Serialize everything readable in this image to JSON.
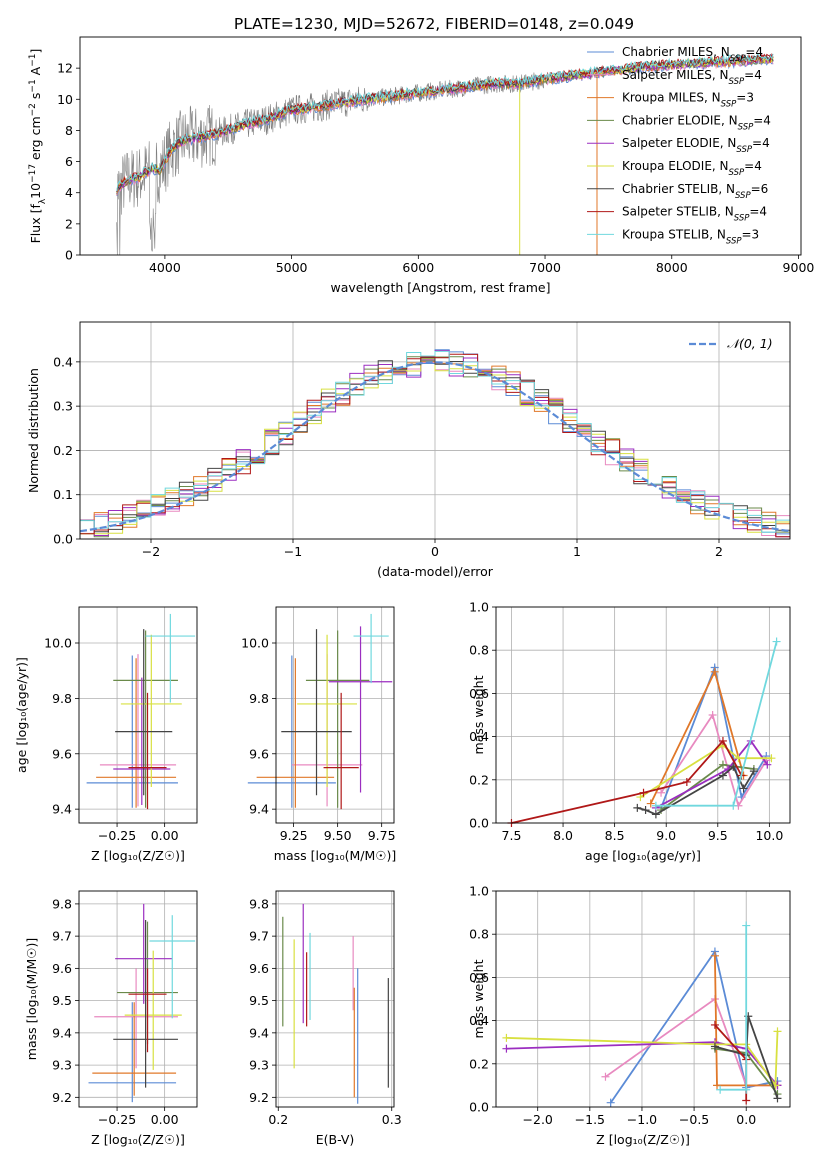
{
  "colors": {
    "Chabrier MILES": "#5b8bd6",
    "Salpeter MILES": "#e88ac0",
    "Kroupa MILES": "#e0782a",
    "Chabrier ELODIE": "#6a8a4a",
    "Salpeter ELODIE": "#9b2ec0",
    "Kroupa ELODIE": "#d8e040",
    "Chabrier STELIB": "#444444",
    "Salpeter STELIB": "#b01818",
    "Kroupa STELIB": "#70d8de"
  },
  "chart_data": [
    {
      "type": "line",
      "id": "spectrum",
      "title": "PLATE=1230, MJD=52672, FIBERID=0148, z=0.049",
      "xlabel": "wavelength [Angstrom, rest frame]",
      "ylabel_parts": [
        "Flux [f",
        "λ",
        "10",
        "−17",
        " erg cm",
        "−2",
        " s",
        "−1",
        " A",
        "−1",
        "]"
      ],
      "xlim": [
        3330,
        9020
      ],
      "ylim": [
        0,
        14
      ],
      "xticks": [
        4000,
        5000,
        6000,
        7000,
        8000,
        9000
      ],
      "yticks": [
        0,
        2,
        4,
        6,
        8,
        10,
        12
      ],
      "data_color": "#808080",
      "model_x": [
        3620,
        3700,
        3800,
        3900,
        3960,
        4050,
        4150,
        4300,
        4450,
        4600,
        4800,
        5000,
        5200,
        5400,
        5600,
        5800,
        6000,
        6200,
        6400,
        6600,
        6800,
        7000,
        7200,
        7400,
        7600,
        7800,
        8000,
        8200,
        8400,
        8600,
        8800
      ],
      "model_y": [
        4.2,
        4.8,
        5.0,
        5.6,
        5.4,
        6.8,
        7.4,
        7.6,
        7.9,
        8.3,
        8.7,
        9.3,
        9.5,
        9.8,
        10.0,
        10.2,
        10.4,
        10.6,
        10.8,
        11.0,
        11.0,
        11.3,
        11.5,
        11.7,
        11.9,
        12.1,
        12.2,
        12.3,
        12.4,
        12.5,
        12.6
      ],
      "legend": [
        {
          "base": "Chabrier MILES, N",
          "sub": "SSP",
          "tail": "=4"
        },
        {
          "base": "Salpeter MILES, N",
          "sub": "SSP",
          "tail": "=4"
        },
        {
          "base": "Kroupa MILES, N",
          "sub": "SSP",
          "tail": "=3"
        },
        {
          "base": "Chabrier ELODIE, N",
          "sub": "SSP",
          "tail": "=4"
        },
        {
          "base": "Salpeter ELODIE, N",
          "sub": "SSP",
          "tail": "=4"
        },
        {
          "base": "Kroupa ELODIE, N",
          "sub": "SSP",
          "tail": "=4"
        },
        {
          "base": "Chabrier STELIB, N",
          "sub": "SSP",
          "tail": "=6"
        },
        {
          "base": "Salpeter STELIB, N",
          "sub": "SSP",
          "tail": "=4"
        },
        {
          "base": "Kroupa STELIB, N",
          "sub": "SSP",
          "tail": "=3"
        }
      ],
      "legend_position": "top-right",
      "grid": false
    },
    {
      "type": "histogram",
      "id": "residuals",
      "xlabel": "(data-model)/error",
      "ylabel": "Normed distribution",
      "xlim": [
        -2.5,
        2.5
      ],
      "ylim": [
        0,
        0.49
      ],
      "xticks": [
        -2,
        -1,
        0,
        1,
        2
      ],
      "yticks": [
        0.0,
        0.1,
        0.2,
        0.3,
        0.4
      ],
      "bin_width": 0.1,
      "legend": "𝒩(0, 1)",
      "legend_position": "top-right",
      "normal_color": "#5b8bd6",
      "grid": true
    },
    {
      "type": "errorbar",
      "id": "age-vs-Z",
      "xlabel": "Z [log₁₀(Z/Z☉)]",
      "ylabel": "age  [log₁₀(age/yr)]",
      "xlim": [
        -0.45,
        0.17
      ],
      "ylim": [
        9.35,
        10.13
      ],
      "xticks": [
        -0.25,
        0.0
      ],
      "xticklabels": [
        "−0.25",
        "0.00"
      ],
      "yticks": [
        9.4,
        9.6,
        9.8,
        10.0
      ],
      "points": [
        {
          "model": "Chabrier MILES",
          "x": -0.17,
          "y": 9.495,
          "xerr": 0.24,
          "yerr": [
            0.09,
            0.46
          ]
        },
        {
          "model": "Salpeter MILES",
          "x": -0.14,
          "y": 9.56,
          "xerr": 0.2,
          "yerr": [
            0.15,
            0.4
          ]
        },
        {
          "model": "Kroupa MILES",
          "x": -0.15,
          "y": 9.515,
          "xerr": 0.21,
          "yerr": [
            0.11,
            0.43
          ]
        },
        {
          "model": "Chabrier ELODIE",
          "x": -0.1,
          "y": 9.865,
          "xerr": 0.17,
          "yerr": [
            0.46,
            0.18
          ]
        },
        {
          "model": "Salpeter ELODIE",
          "x": -0.12,
          "y": 9.545,
          "xerr": 0.15,
          "yerr": [
            0.13,
            0.33
          ]
        },
        {
          "model": "Kroupa ELODIE",
          "x": -0.07,
          "y": 9.78,
          "xerr": 0.16,
          "yerr": [
            0.3,
            0.25
          ]
        },
        {
          "model": "Chabrier STELIB",
          "x": -0.11,
          "y": 9.68,
          "xerr": 0.15,
          "yerr": [
            0.23,
            0.37
          ]
        },
        {
          "model": "Salpeter STELIB",
          "x": -0.09,
          "y": 9.55,
          "xerr": 0.1,
          "yerr": [
            0.15,
            0.27
          ]
        },
        {
          "model": "Kroupa STELIB",
          "x": 0.03,
          "y": 10.025,
          "xerr": 0.13,
          "yerr": [
            0.24,
            0.08
          ]
        }
      ],
      "grid": true
    },
    {
      "type": "errorbar",
      "id": "age-vs-mass",
      "xlabel": "mass [log₁₀(M/M☉)]",
      "xlim": [
        9.15,
        9.82
      ],
      "ylim": [
        9.35,
        10.13
      ],
      "xticks": [
        9.25,
        9.5,
        9.75
      ],
      "xticklabels": [
        "9.25",
        "9.50",
        "9.75"
      ],
      "yticks": [
        9.4,
        9.6,
        9.8,
        10.0
      ],
      "points": [
        {
          "model": "Chabrier MILES",
          "x": 9.24,
          "y": 9.495,
          "xerr": 0.25,
          "yerr": [
            0.09,
            0.46
          ]
        },
        {
          "model": "Salpeter MILES",
          "x": 9.44,
          "y": 9.56,
          "xerr": 0.2,
          "yerr": [
            0.15,
            0.4
          ]
        },
        {
          "model": "Kroupa MILES",
          "x": 9.26,
          "y": 9.515,
          "xerr": 0.22,
          "yerr": [
            0.11,
            0.43
          ]
        },
        {
          "model": "Chabrier ELODIE",
          "x": 9.5,
          "y": 9.865,
          "xerr": 0.18,
          "yerr": [
            0.46,
            0.18
          ]
        },
        {
          "model": "Salpeter ELODIE",
          "x": 9.63,
          "y": 9.86,
          "xerr": 0.18,
          "yerr": [
            0.4,
            0.2
          ]
        },
        {
          "model": "Kroupa ELODIE",
          "x": 9.44,
          "y": 9.78,
          "xerr": 0.17,
          "yerr": [
            0.3,
            0.25
          ]
        },
        {
          "model": "Chabrier STELIB",
          "x": 9.38,
          "y": 9.68,
          "xerr": 0.2,
          "yerr": [
            0.23,
            0.37
          ]
        },
        {
          "model": "Salpeter STELIB",
          "x": 9.52,
          "y": 9.55,
          "xerr": 0.1,
          "yerr": [
            0.15,
            0.27
          ]
        },
        {
          "model": "Kroupa STELIB",
          "x": 9.69,
          "y": 10.025,
          "xerr": 0.1,
          "yerr": [
            0.17,
            0.08
          ]
        }
      ],
      "grid": true
    },
    {
      "type": "line",
      "id": "massweight-vs-age",
      "xlabel": "age  [log₁₀(age/yr)]",
      "ylabel": "mass weight",
      "xlim": [
        7.35,
        10.2
      ],
      "ylim": [
        0,
        1
      ],
      "xticks": [
        7.5,
        8.0,
        8.5,
        9.0,
        9.5,
        10.0
      ],
      "xticklabels": [
        "7.5",
        "8.0",
        "8.5",
        "9.0",
        "9.5",
        "10.0"
      ],
      "yticks": [
        0.0,
        0.2,
        0.4,
        0.6,
        0.8,
        1.0
      ],
      "series": [
        {
          "name": "Chabrier MILES",
          "points": [
            [
              8.95,
              0.07
            ],
            [
              9.47,
              0.72
            ],
            [
              9.73,
              0.12
            ],
            [
              9.97,
              0.31
            ]
          ]
        },
        {
          "name": "Salpeter MILES",
          "points": [
            [
              8.95,
              0.14
            ],
            [
              9.45,
              0.5
            ],
            [
              9.7,
              0.08
            ],
            [
              9.97,
              0.29
            ]
          ]
        },
        {
          "name": "Kroupa MILES",
          "points": [
            [
              8.85,
              0.09
            ],
            [
              9.47,
              0.7
            ],
            [
              9.75,
              0.22
            ]
          ]
        },
        {
          "name": "Chabrier ELODIE",
          "points": [
            [
              8.95,
              0.06
            ],
            [
              9.55,
              0.27
            ],
            [
              9.85,
              0.25
            ]
          ]
        },
        {
          "name": "Salpeter ELODIE",
          "points": [
            [
              8.9,
              0.07
            ],
            [
              9.6,
              0.25
            ],
            [
              9.82,
              0.38
            ],
            [
              9.98,
              0.27
            ]
          ]
        },
        {
          "name": "Kroupa ELODIE",
          "points": [
            [
              8.75,
              0.12
            ],
            [
              9.55,
              0.36
            ],
            [
              9.7,
              0.3
            ],
            [
              10.02,
              0.3
            ]
          ]
        },
        {
          "name": "Chabrier STELIB",
          "points": [
            [
              8.72,
              0.07
            ],
            [
              8.8,
              0.06
            ],
            [
              8.9,
              0.04
            ],
            [
              9.55,
              0.22
            ],
            [
              9.65,
              0.26
            ],
            [
              9.75,
              0.16
            ],
            [
              9.85,
              0.24
            ]
          ]
        },
        {
          "name": "Salpeter STELIB",
          "points": [
            [
              7.5,
              0.0
            ],
            [
              8.78,
              0.14
            ],
            [
              9.2,
              0.19
            ],
            [
              9.55,
              0.38
            ],
            [
              9.73,
              0.22
            ]
          ]
        },
        {
          "name": "Kroupa STELIB",
          "points": [
            [
              8.9,
              0.08
            ],
            [
              9.65,
              0.08
            ],
            [
              10.07,
              0.84
            ]
          ]
        }
      ],
      "grid": true
    },
    {
      "type": "errorbar",
      "id": "mass-vs-Z",
      "xlabel": "Z [log₁₀(Z/Z☉)]",
      "ylabel": "mass [log₁₀(M/M☉)]",
      "xlim": [
        -0.45,
        0.17
      ],
      "ylim": [
        9.17,
        9.84
      ],
      "xticks": [
        -0.25,
        0.0
      ],
      "xticklabels": [
        "−0.25",
        "0.00"
      ],
      "yticks": [
        9.2,
        9.3,
        9.4,
        9.5,
        9.6,
        9.7,
        9.8
      ],
      "points": [
        {
          "model": "Chabrier MILES",
          "x": -0.17,
          "y": 9.245,
          "xerr": 0.23,
          "yerr": [
            0.06,
            0.25
          ]
        },
        {
          "model": "Salpeter MILES",
          "x": -0.15,
          "y": 9.45,
          "xerr": 0.22,
          "yerr": [
            0.16,
            0.15
          ]
        },
        {
          "model": "Kroupa MILES",
          "x": -0.16,
          "y": 9.275,
          "xerr": 0.22,
          "yerr": [
            0.07,
            0.22
          ]
        },
        {
          "model": "Chabrier ELODIE",
          "x": -0.09,
          "y": 9.525,
          "xerr": 0.16,
          "yerr": [
            0.16,
            0.22
          ]
        },
        {
          "model": "Salpeter ELODIE",
          "x": -0.11,
          "y": 9.63,
          "xerr": 0.15,
          "yerr": [
            0.14,
            0.17
          ]
        },
        {
          "model": "Kroupa ELODIE",
          "x": -0.06,
          "y": 9.455,
          "xerr": 0.15,
          "yerr": [
            0.17,
            0.2
          ]
        },
        {
          "model": "Chabrier STELIB",
          "x": -0.1,
          "y": 9.38,
          "xerr": 0.17,
          "yerr": [
            0.15,
            0.37
          ]
        },
        {
          "model": "Salpeter STELIB",
          "x": -0.09,
          "y": 9.52,
          "xerr": 0.1,
          "yerr": [
            0.18,
            0.08
          ]
        },
        {
          "model": "Kroupa STELIB",
          "x": 0.04,
          "y": 9.685,
          "xerr": 0.12,
          "yerr": [
            0.24,
            0.08
          ]
        }
      ],
      "grid": true
    },
    {
      "type": "errorbar",
      "id": "mass-vs-ebv",
      "xlabel": "E(B-V)",
      "xlim": [
        0.198,
        0.302
      ],
      "ylim": [
        9.17,
        9.84
      ],
      "xticks": [
        0.2,
        0.3
      ],
      "xticklabels": [
        "0.2",
        "0.3"
      ],
      "yticks": [
        9.2,
        9.3,
        9.4,
        9.5,
        9.6,
        9.7,
        9.8
      ],
      "points": [
        {
          "model": "Chabrier MILES",
          "x": 0.27,
          "y": 9.39,
          "xerr": 0.0,
          "yerr": [
            0.21,
            0.21
          ]
        },
        {
          "model": "Salpeter MILES",
          "x": 0.266,
          "y": 9.6,
          "xerr": 0.0,
          "yerr": [
            0.13,
            0.1
          ]
        },
        {
          "model": "Kroupa MILES",
          "x": 0.267,
          "y": 9.37,
          "xerr": 0.0,
          "yerr": [
            0.17,
            0.17
          ]
        },
        {
          "model": "Chabrier ELODIE",
          "x": 0.204,
          "y": 9.59,
          "xerr": 0.0,
          "yerr": [
            0.17,
            0.17
          ]
        },
        {
          "model": "Salpeter ELODIE",
          "x": 0.222,
          "y": 9.61,
          "xerr": 0.0,
          "yerr": [
            0.18,
            0.19
          ]
        },
        {
          "model": "Kroupa ELODIE",
          "x": 0.214,
          "y": 9.49,
          "xerr": 0.0,
          "yerr": [
            0.2,
            0.2
          ]
        },
        {
          "model": "Chabrier STELIB",
          "x": 0.297,
          "y": 9.4,
          "xerr": 0.0,
          "yerr": [
            0.17,
            0.17
          ]
        },
        {
          "model": "Salpeter STELIB",
          "x": 0.225,
          "y": 9.55,
          "xerr": 0.0,
          "yerr": [
            0.13,
            0.1
          ]
        },
        {
          "model": "Kroupa STELIB",
          "x": 0.228,
          "y": 9.6,
          "xerr": 0.0,
          "yerr": [
            0.16,
            0.11
          ]
        }
      ],
      "grid": true
    },
    {
      "type": "line",
      "id": "massweight-vs-Z",
      "xlabel": "Z [log₁₀(Z/Z☉)]",
      "ylabel": "mass weight",
      "xlim": [
        -2.4,
        0.42
      ],
      "ylim": [
        0,
        1
      ],
      "xticks": [
        -2.0,
        -1.5,
        -1.0,
        -0.5,
        0.0
      ],
      "xticklabels": [
        "−2.0",
        "−1.5",
        "−1.0",
        "−0.5",
        "0.0"
      ],
      "yticks": [
        0.0,
        0.2,
        0.4,
        0.6,
        0.8,
        1.0
      ],
      "series": [
        {
          "name": "Chabrier MILES",
          "points": [
            [
              -1.3,
              0.02
            ],
            [
              -0.3,
              0.72
            ],
            [
              0.0,
              0.09
            ],
            [
              0.3,
              0.12
            ]
          ]
        },
        {
          "name": "Salpeter MILES",
          "points": [
            [
              -1.35,
              0.14
            ],
            [
              -0.3,
              0.5
            ],
            [
              0.0,
              0.1
            ],
            [
              0.3,
              0.1
            ]
          ]
        },
        {
          "name": "Kroupa MILES",
          "points": [
            [
              -0.3,
              0.7
            ],
            [
              -0.28,
              0.1
            ],
            [
              0.3,
              0.1
            ]
          ]
        },
        {
          "name": "Chabrier ELODIE",
          "points": [
            [
              -0.3,
              0.27
            ],
            [
              0.0,
              0.25
            ],
            [
              0.3,
              0.06
            ]
          ]
        },
        {
          "name": "Salpeter ELODIE",
          "points": [
            [
              -2.3,
              0.27
            ],
            [
              -0.3,
              0.3
            ],
            [
              0.0,
              0.27
            ],
            [
              0.3,
              0.1
            ]
          ]
        },
        {
          "name": "Kroupa ELODIE",
          "points": [
            [
              -2.3,
              0.32
            ],
            [
              -0.3,
              0.29
            ],
            [
              0.0,
              0.29
            ],
            [
              0.28,
              0.1
            ],
            [
              0.3,
              0.35
            ]
          ]
        },
        {
          "name": "Chabrier STELIB",
          "points": [
            [
              -0.3,
              0.28
            ],
            [
              0.0,
              0.24
            ],
            [
              0.02,
              0.42
            ],
            [
              0.3,
              0.04
            ]
          ]
        },
        {
          "name": "Salpeter STELIB",
          "points": [
            [
              -0.3,
              0.38
            ],
            [
              0.0,
              0.22
            ],
            [
              0.0,
              0.03
            ]
          ]
        },
        {
          "name": "Kroupa STELIB",
          "points": [
            [
              -0.25,
              0.08
            ],
            [
              0.0,
              0.08
            ],
            [
              0.0,
              0.84
            ]
          ]
        }
      ],
      "grid": true
    }
  ]
}
